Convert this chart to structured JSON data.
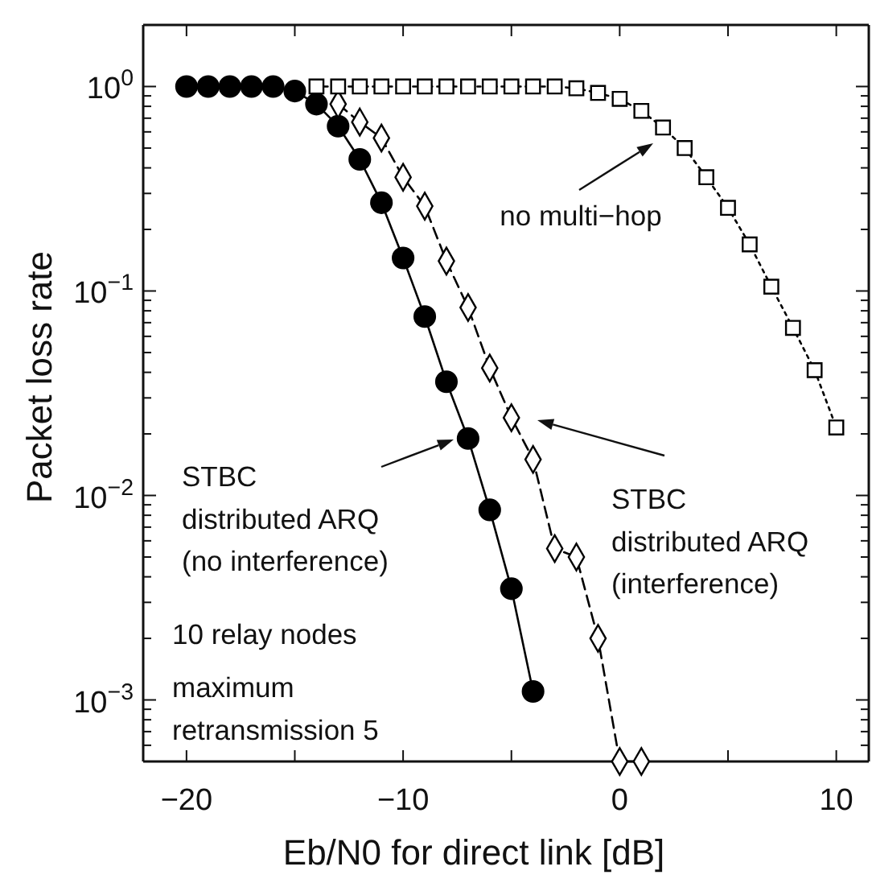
{
  "chart_data": {
    "type": "line",
    "xlabel": "Eb/N0 for direct link [dB]",
    "ylabel": "Packet loss rate",
    "log": "y",
    "grid": false,
    "xlim": [
      -22,
      11.5
    ],
    "ylim": [
      0.0005,
      2
    ],
    "xticks": [
      {
        "value": -20,
        "label": "−20"
      },
      {
        "value": -15,
        "label": null
      },
      {
        "value": -10,
        "label": "−10"
      },
      {
        "value": -5,
        "label": null
      },
      0,
      {
        "value": 5,
        "label": null
      },
      10
    ],
    "yticks": [
      {
        "value": 0.0005,
        "label": null
      },
      {
        "value": 0.0006,
        "label": null
      },
      {
        "value": 0.0007,
        "label": null
      },
      {
        "value": 0.0008,
        "label": null
      },
      {
        "value": 0.0009,
        "label": null
      },
      {
        "value": 0.001,
        "label": "10$^{−3}$"
      },
      {
        "value": 0.002,
        "label": null
      },
      {
        "value": 0.003,
        "label": null
      },
      {
        "value": 0.004,
        "label": null
      },
      {
        "value": 0.005,
        "label": null
      },
      {
        "value": 0.006,
        "label": null
      },
      {
        "value": 0.007,
        "label": null
      },
      {
        "value": 0.008,
        "label": null
      },
      {
        "value": 0.009,
        "label": null
      },
      {
        "value": 0.01,
        "label": "10$^{−2}$"
      },
      {
        "value": 0.02,
        "label": null
      },
      {
        "value": 0.03,
        "label": null
      },
      {
        "value": 0.04,
        "label": null
      },
      {
        "value": 0.05,
        "label": null
      },
      {
        "value": 0.06,
        "label": null
      },
      {
        "value": 0.07,
        "label": null
      },
      {
        "value": 0.08,
        "label": null
      },
      {
        "value": 0.09,
        "label": null
      },
      {
        "value": 0.1,
        "label": "10$^{−1}$"
      },
      {
        "value": 0.2,
        "label": null
      },
      {
        "value": 0.3,
        "label": null
      },
      {
        "value": 0.4,
        "label": null
      },
      {
        "value": 0.5,
        "label": null
      },
      {
        "value": 0.6,
        "label": null
      },
      {
        "value": 0.7,
        "label": null
      },
      {
        "value": 0.8,
        "label": null
      },
      {
        "value": 0.9,
        "label": null
      },
      {
        "value": 1,
        "label": "10$^{0}$"
      },
      {
        "value": 2,
        "label": null
      }
    ],
    "series": [
      {
        "color": "#000000",
        "marker": "circle",
        "line_style": "solid",
        "x": [
          -20,
          -19,
          -18,
          -17,
          -16,
          -15,
          -14,
          -13,
          -12,
          -11,
          -10,
          -9,
          -8,
          -7,
          -6,
          -5,
          -4
        ],
        "values": [
          1,
          1,
          1,
          1,
          1,
          0.95,
          0.82,
          0.64,
          0.44,
          0.27,
          0.145,
          0.075,
          0.036,
          0.019,
          0.0085,
          0.0035,
          0.0011
        ]
      },
      {
        "color": "#000000",
        "marker": "diamond",
        "line_style": "dashed",
        "x": [
          -13,
          -12,
          -11,
          -10,
          -9,
          -8,
          -7,
          -6,
          -5,
          -4,
          -3,
          -2,
          -1,
          0,
          1
        ],
        "values": [
          0.82,
          0.67,
          0.56,
          0.36,
          0.26,
          0.14,
          0.083,
          0.042,
          0.024,
          0.015,
          0.0055,
          0.005,
          0.002,
          0.0005,
          0.0005
        ]
      },
      {
        "color": "#000000",
        "marker": "square",
        "line_style": "dotted",
        "x": [
          -14,
          -13,
          -12,
          -11,
          -10,
          -9,
          -8,
          -7,
          -6,
          -5,
          -4,
          -3,
          -2,
          -1,
          0,
          1,
          2,
          3,
          4,
          5,
          6,
          7,
          8,
          9,
          10
        ],
        "values": [
          1,
          1,
          1,
          1,
          1,
          1,
          1,
          1,
          1,
          1,
          1,
          1,
          0.98,
          0.93,
          0.87,
          0.76,
          0.63,
          0.5,
          0.36,
          0.255,
          0.169,
          0.105,
          0.066,
          0.041,
          0.0215
        ]
      }
    ],
    "annotations": [
      "no multi−hop",
      "STBC\ndistributed ARQ\n(no interference)",
      "STBC\ndistributed ARQ\n(interference)",
      "10 relay nodes",
      "maximum\nretransmission 5"
    ]
  }
}
